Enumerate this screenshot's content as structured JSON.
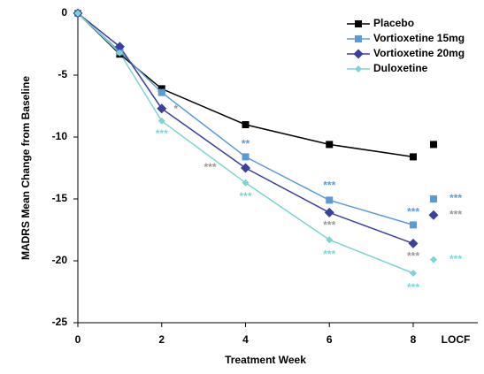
{
  "chart_data": {
    "type": "line",
    "x_label": "Treatment Week",
    "y_label": "MADRS Mean Change from Baseline",
    "x": [
      0,
      1,
      2,
      4,
      6,
      8
    ],
    "xlim": [
      0,
      8
    ],
    "xticks": [
      0,
      2,
      4,
      6,
      8
    ],
    "ylim": [
      -25,
      0
    ],
    "yticks": [
      0,
      -5,
      -10,
      -15,
      -20,
      -25
    ],
    "locf_label": "LOCF",
    "series": [
      {
        "name": "Placebo",
        "color": "#000000",
        "marker": "square",
        "values": [
          0,
          -3.3,
          -6.1,
          -9.0,
          -10.6,
          -11.6
        ],
        "locf": -10.6
      },
      {
        "name": "Vortioxetine 15mg",
        "color": "#5b9bd5",
        "marker": "square",
        "star_color": "#5b9bd5",
        "values": [
          0,
          -3.1,
          -6.4,
          -11.6,
          -15.1,
          -17.1
        ],
        "locf": -15.0,
        "stars": [
          null,
          null,
          null,
          "**",
          "***",
          "***"
        ],
        "locf_star": "***"
      },
      {
        "name": "Vortioxetine 20mg",
        "color": "#3b3f9e",
        "marker": "diamond",
        "star_color": "#999999",
        "values": [
          0,
          -2.7,
          -7.7,
          -12.5,
          -16.1,
          -18.6
        ],
        "locf": -16.3,
        "stars": [
          null,
          null,
          "*",
          "***",
          "***",
          "***"
        ],
        "locf_star": "***"
      },
      {
        "name": "Duloxetine",
        "color": "#7fd3d3",
        "marker": "diamond-small",
        "star_color": "#7fd3d3",
        "values": [
          0,
          -3.2,
          -8.7,
          -13.7,
          -18.3,
          -21.0
        ],
        "locf": -19.9,
        "stars": [
          null,
          null,
          "***",
          "***",
          "***",
          "***"
        ],
        "locf_star": "***"
      }
    ]
  }
}
